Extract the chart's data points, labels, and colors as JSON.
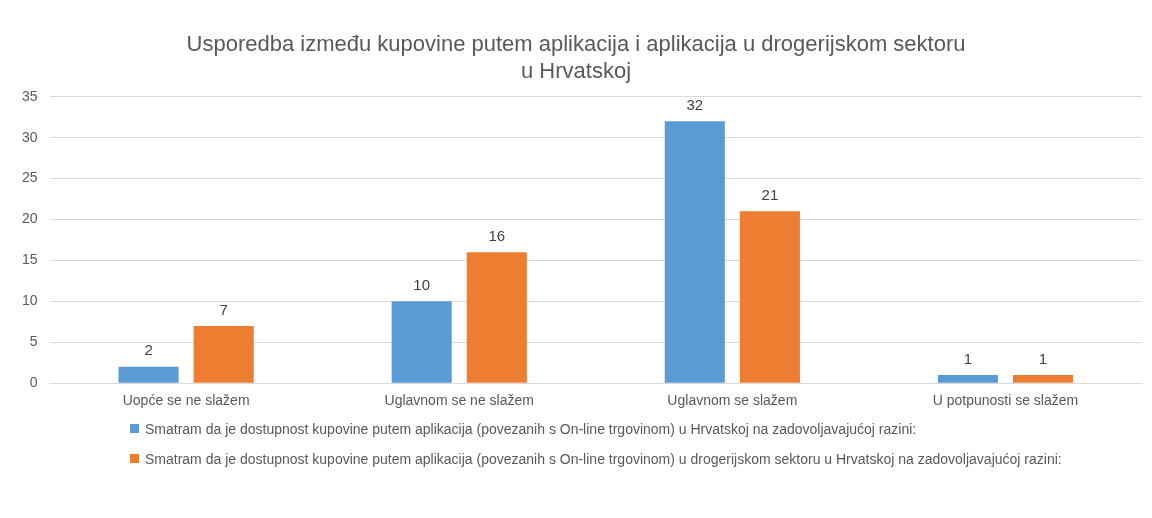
{
  "chart_data": {
    "type": "bar",
    "title": "Usporedba između kupovine putem aplikacija i aplikacija u drogerijskom sektoru\nu Hrvatskoj",
    "categories": [
      "Uopće se ne slažem",
      "Uglavnom se ne slažem",
      "Uglavnom se slažem",
      "U potpunosti se slažem"
    ],
    "series": [
      {
        "name": "Smatram da je dostupnost kupovine putem aplikacija (povezanih s On-line trgovinom) u Hrvatskoj na zadovoljavajućoj razini:",
        "color": "#5b9bd5",
        "values": [
          2,
          10,
          32,
          1
        ]
      },
      {
        "name": "Smatram da je dostupnost kupovine putem aplikacija (povezanih s On-line trgovinom) u drogerijskom sektoru u Hrvatskoj na zadovoljavajućoj razini:",
        "color": "#ed7d31",
        "values": [
          7,
          16,
          21,
          1
        ]
      }
    ],
    "ylim": [
      0,
      35
    ],
    "yticks": [
      0,
      5,
      10,
      15,
      20,
      25,
      30,
      35
    ],
    "grid": "y",
    "legend": "bottom",
    "data_labels": true
  }
}
